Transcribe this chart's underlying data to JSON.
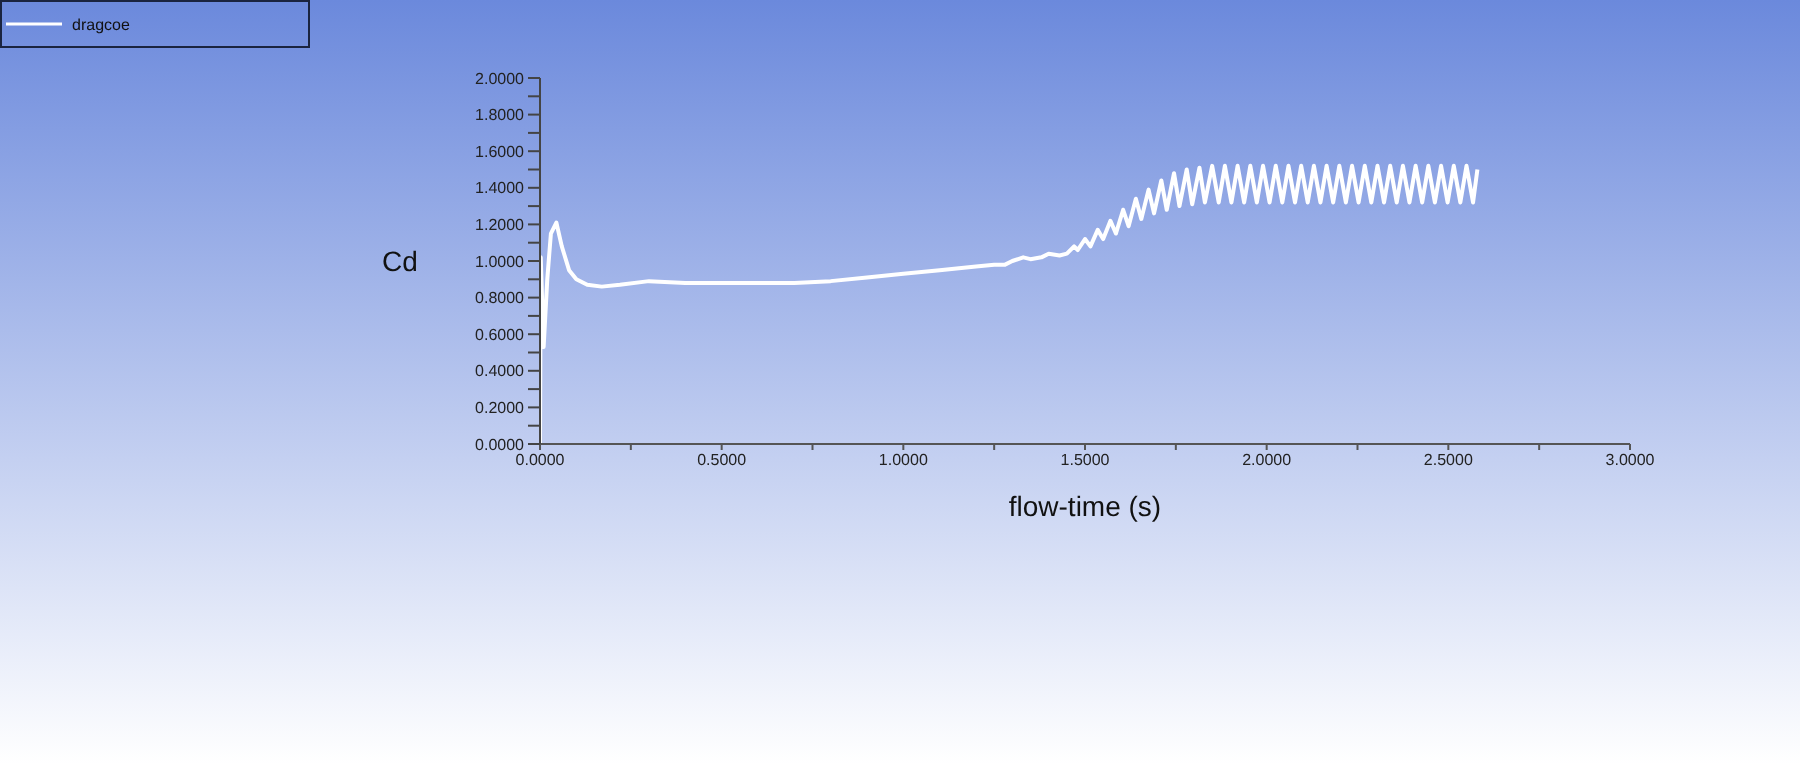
{
  "chart_data": {
    "type": "line",
    "xlabel": "flow-time (s)",
    "ylabel": "Cd",
    "legend": "top left",
    "grid": false,
    "marker": "none",
    "line_style": "solid",
    "xlim": [
      0,
      3
    ],
    "ylim": [
      0,
      2
    ],
    "xticks": [
      {
        "value": 0,
        "label": "0.0000"
      },
      {
        "value": 0.25,
        "label": null
      },
      {
        "value": 0.5,
        "label": "0.5000"
      },
      {
        "value": 0.75,
        "label": null
      },
      {
        "value": 1,
        "label": "1.0000"
      },
      {
        "value": 1.25,
        "label": null
      },
      {
        "value": 1.5,
        "label": "1.5000"
      },
      {
        "value": 1.75,
        "label": null
      },
      {
        "value": 2,
        "label": "2.0000"
      },
      {
        "value": 2.25,
        "label": null
      },
      {
        "value": 2.5,
        "label": "2.5000"
      },
      {
        "value": 2.75,
        "label": null
      },
      {
        "value": 3,
        "label": "3.0000"
      }
    ],
    "yticks": [
      {
        "value": 0,
        "label": "0.0000"
      },
      {
        "value": 0.1,
        "label": null
      },
      {
        "value": 0.2,
        "label": "0.2000"
      },
      {
        "value": 0.3,
        "label": null
      },
      {
        "value": 0.4,
        "label": "0.4000"
      },
      {
        "value": 0.5,
        "label": null
      },
      {
        "value": 0.6,
        "label": "0.6000"
      },
      {
        "value": 0.7,
        "label": null
      },
      {
        "value": 0.8,
        "label": "0.8000"
      },
      {
        "value": 0.9,
        "label": null
      },
      {
        "value": 1,
        "label": "1.0000"
      },
      {
        "value": 1.1,
        "label": null
      },
      {
        "value": 1.2,
        "label": "1.2000"
      },
      {
        "value": 1.3,
        "label": null
      },
      {
        "value": 1.4,
        "label": "1.4000"
      },
      {
        "value": 1.5,
        "label": null
      },
      {
        "value": 1.6,
        "label": "1.6000"
      },
      {
        "value": 1.7,
        "label": null
      },
      {
        "value": 1.8,
        "label": "1.8000"
      },
      {
        "value": 1.9,
        "label": null
      },
      {
        "value": 2,
        "label": "2.0000"
      }
    ],
    "series": [
      {
        "name": "dragcoe",
        "color": "#ffffff",
        "x": [
          0,
          0.002,
          0.01,
          0.02,
          0.03,
          0.045,
          0.06,
          0.08,
          0.1,
          0.13,
          0.17,
          0.22,
          0.3,
          0.4,
          0.5,
          0.6,
          0.7,
          0.8,
          0.9,
          1.0,
          1.1,
          1.2,
          1.25,
          1.28,
          1.3,
          1.33,
          1.35,
          1.38,
          1.4,
          1.43,
          1.45,
          1.47,
          1.48,
          1.5,
          1.515,
          1.535,
          1.55,
          1.57,
          1.585,
          1.605,
          1.62,
          1.64,
          1.655,
          1.675,
          1.69,
          1.71,
          1.725,
          1.745,
          1.76,
          1.78,
          1.795,
          1.815,
          1.83,
          1.85,
          1.868,
          1.885,
          1.903,
          1.92,
          1.938,
          1.955,
          1.973,
          1.99,
          2.008,
          2.025,
          2.043,
          2.06,
          2.078,
          2.095,
          2.113,
          2.13,
          2.148,
          2.165,
          2.183,
          2.2,
          2.218,
          2.235,
          2.253,
          2.27,
          2.288,
          2.305,
          2.323,
          2.34,
          2.358,
          2.375,
          2.393,
          2.41,
          2.428,
          2.445,
          2.463,
          2.48,
          2.498,
          2.515,
          2.533,
          2.55,
          2.568,
          2.58
        ],
        "values": [
          0,
          1.02,
          0.53,
          0.9,
          1.15,
          1.21,
          1.08,
          0.95,
          0.9,
          0.87,
          0.86,
          0.87,
          0.89,
          0.88,
          0.88,
          0.88,
          0.88,
          0.89,
          0.91,
          0.93,
          0.95,
          0.97,
          0.98,
          0.98,
          1.0,
          1.02,
          1.01,
          1.02,
          1.04,
          1.03,
          1.04,
          1.08,
          1.06,
          1.12,
          1.08,
          1.17,
          1.12,
          1.22,
          1.15,
          1.28,
          1.19,
          1.34,
          1.23,
          1.39,
          1.26,
          1.44,
          1.28,
          1.48,
          1.3,
          1.5,
          1.31,
          1.51,
          1.32,
          1.52,
          1.32,
          1.52,
          1.32,
          1.52,
          1.32,
          1.52,
          1.32,
          1.52,
          1.32,
          1.52,
          1.32,
          1.52,
          1.32,
          1.52,
          1.32,
          1.52,
          1.32,
          1.52,
          1.32,
          1.52,
          1.32,
          1.52,
          1.32,
          1.52,
          1.32,
          1.52,
          1.32,
          1.52,
          1.32,
          1.52,
          1.32,
          1.52,
          1.32,
          1.52,
          1.32,
          1.52,
          1.32,
          1.52,
          1.32,
          1.52,
          1.32,
          1.5
        ]
      }
    ]
  }
}
